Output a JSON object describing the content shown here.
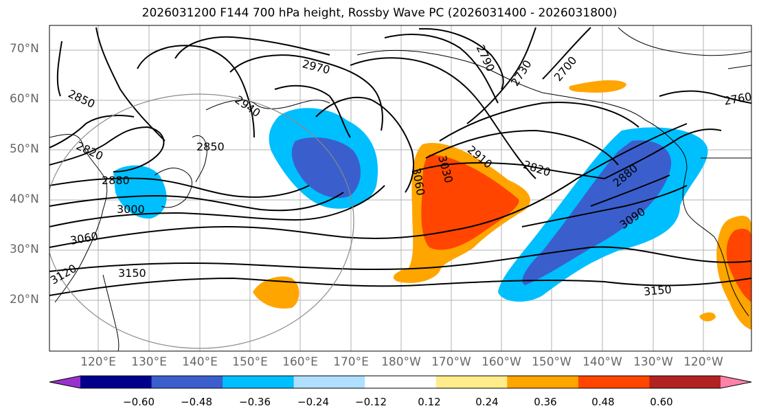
{
  "title": "2026031200 F144 700 hPa height, Rossby Wave PC (2026031400 - 2026031800)",
  "map": {
    "lat_labels": [
      "70°N",
      "60°N",
      "50°N",
      "40°N",
      "30°N",
      "20°N"
    ],
    "lon_labels": [
      "120°E",
      "130°E",
      "140°E",
      "150°E",
      "160°E",
      "170°E",
      "180°W",
      "170°W",
      "160°W",
      "150°W",
      "140°W",
      "130°W",
      "120°W"
    ],
    "contour_labels": [
      "2970",
      "2940",
      "2850",
      "2820",
      "2880",
      "3000",
      "3060",
      "3120",
      "3150",
      "3060",
      "3030",
      "2910",
      "2820",
      "2790",
      "2730",
      "2700",
      "2760",
      "2880",
      "3090",
      "3150",
      "2850"
    ]
  },
  "colorbar": {
    "colors": [
      "#9932cc",
      "#00008b",
      "#3a5fcd",
      "#00bfff",
      "#b0e0ff",
      "#ffffff",
      "#ffec8b",
      "#ffa500",
      "#ff4500",
      "#b22222",
      "#ff82ab"
    ],
    "tick_labels": [
      "−0.60",
      "−0.48",
      "−0.36",
      "−0.24",
      "−0.12",
      "0.12",
      "0.24",
      "0.36",
      "0.48",
      "0.60"
    ]
  }
}
